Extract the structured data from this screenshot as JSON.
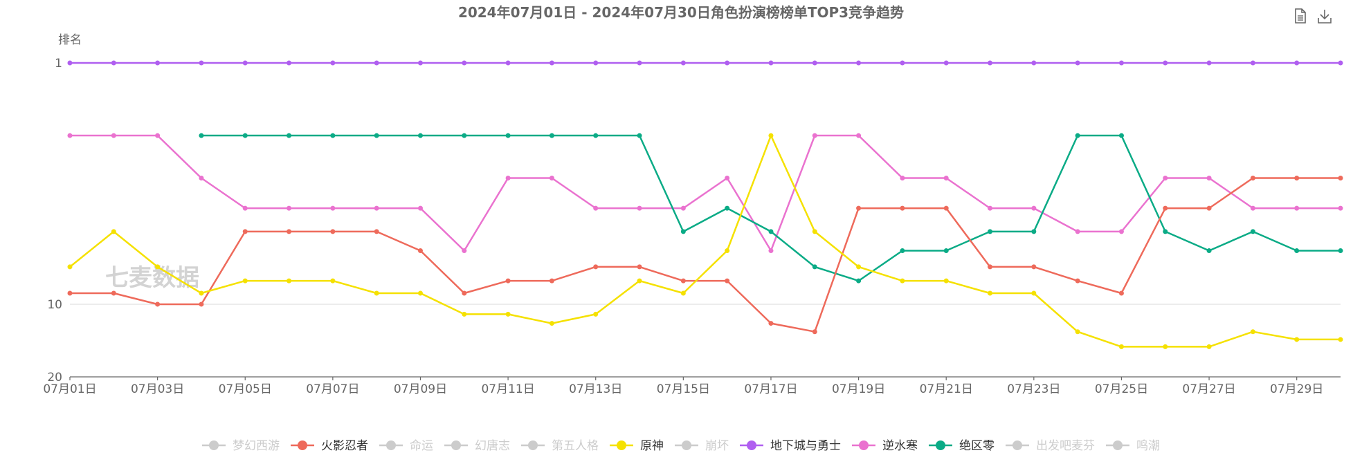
{
  "toolbox": {
    "save_text_icon": "document-icon",
    "download_icon": "download-icon"
  },
  "watermark": "七麦数据",
  "chart_data": {
    "type": "line",
    "title": "2024年07月01日 - 2024年07月30日角色扮演榜榜单TOP3竞争趋势",
    "ylabel": "排名",
    "xlabel": "",
    "y_axis": {
      "scale": "log",
      "inverse": true,
      "min": 1,
      "max": 20,
      "tick_labels": [
        "1",
        "10",
        "20"
      ]
    },
    "grid": true,
    "legend_position": "bottom",
    "x": [
      "07月01日",
      "07月02日",
      "07月03日",
      "07月04日",
      "07月05日",
      "07月06日",
      "07月07日",
      "07月08日",
      "07月09日",
      "07月10日",
      "07月11日",
      "07月12日",
      "07月13日",
      "07月14日",
      "07月15日",
      "07月16日",
      "07月17日",
      "07月18日",
      "07月19日",
      "07月20日",
      "07月21日",
      "07月22日",
      "07月23日",
      "07月24日",
      "07月25日",
      "07月26日",
      "07月27日",
      "07月28日",
      "07月29日",
      "07月30日"
    ],
    "x_tick_labels": [
      "07月01日",
      "07月03日",
      "07月05日",
      "07月07日",
      "07月09日",
      "07月11日",
      "07月13日",
      "07月15日",
      "07月17日",
      "07月19日",
      "07月21日",
      "07月23日",
      "07月25日",
      "07月27日",
      "07月29日"
    ],
    "legend": [
      {
        "name": "梦幻西游",
        "active": false,
        "color": "#cccccc"
      },
      {
        "name": "火影忍者",
        "active": true,
        "color": "#ee6a5b"
      },
      {
        "name": "命运",
        "active": false,
        "color": "#cccccc"
      },
      {
        "name": "幻唐志",
        "active": false,
        "color": "#cccccc"
      },
      {
        "name": "第五人格",
        "active": false,
        "color": "#cccccc"
      },
      {
        "name": "原神",
        "active": true,
        "color": "#f5e100"
      },
      {
        "name": "崩坏",
        "active": false,
        "color": "#cccccc"
      },
      {
        "name": "地下城与勇士",
        "active": true,
        "color": "#b05ff0"
      },
      {
        "name": "逆水寒",
        "active": true,
        "color": "#ea72cf"
      },
      {
        "name": "绝区零",
        "active": true,
        "color": "#0aab86"
      },
      {
        "name": "出发吧麦芬",
        "active": false,
        "color": "#cccccc"
      },
      {
        "name": "鸣潮",
        "active": false,
        "color": "#cccccc"
      }
    ],
    "series": [
      {
        "name": "地下城与勇士",
        "color": "#b05ff0",
        "values": [
          1,
          1,
          1,
          1,
          1,
          1,
          1,
          1,
          1,
          1,
          1,
          1,
          1,
          1,
          1,
          1,
          1,
          1,
          1,
          1,
          1,
          1,
          1,
          1,
          1,
          1,
          1,
          1,
          1,
          1
        ]
      },
      {
        "name": "逆水寒",
        "color": "#ea72cf",
        "values": [
          2,
          2,
          2,
          3,
          4,
          4,
          4,
          4,
          4,
          6,
          3,
          3,
          4,
          4,
          4,
          3,
          6,
          2,
          2,
          3,
          3,
          4,
          4,
          5,
          5,
          3,
          3,
          4,
          4,
          4
        ]
      },
      {
        "name": "绝区零",
        "color": "#0aab86",
        "values": [
          null,
          null,
          null,
          2,
          2,
          2,
          2,
          2,
          2,
          2,
          2,
          2,
          2,
          2,
          5,
          4,
          5,
          7,
          8,
          6,
          6,
          5,
          5,
          2,
          2,
          5,
          6,
          5,
          6,
          6
        ]
      },
      {
        "name": "火影忍者",
        "color": "#ee6a5b",
        "values": [
          9,
          9,
          10,
          10,
          5,
          5,
          5,
          5,
          6,
          9,
          8,
          8,
          7,
          7,
          8,
          8,
          12,
          13,
          4,
          4,
          4,
          7,
          7,
          8,
          9,
          4,
          4,
          3,
          3,
          3
        ]
      },
      {
        "name": "原神",
        "color": "#f5e100",
        "values": [
          7,
          5,
          7,
          9,
          8,
          8,
          8,
          9,
          9,
          11,
          11,
          12,
          11,
          8,
          9,
          6,
          2,
          5,
          7,
          8,
          8,
          9,
          9,
          13,
          15,
          15,
          15,
          13,
          14,
          14
        ]
      }
    ]
  }
}
